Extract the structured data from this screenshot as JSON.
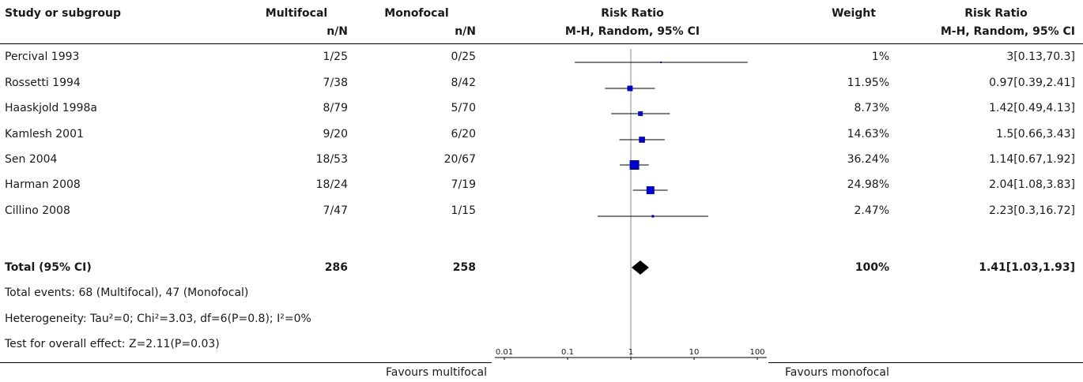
{
  "headers": {
    "study": "Study or subgroup",
    "group1": "Multifocal",
    "group1_sub": "n/N",
    "group2": "Monofocal",
    "group2_sub": "n/N",
    "plot": "Risk Ratio",
    "plot_sub": "M-H, Random, 95% CI",
    "weight": "Weight",
    "effect": "Risk Ratio",
    "effect_sub": "M-H, Random, 95% CI"
  },
  "studies": [
    {
      "name": "Percival 1993",
      "g1": "1/25",
      "g2": "0/25",
      "weight": "1%",
      "ci_text": "3[0.13,70.3]"
    },
    {
      "name": "Rossetti 1994",
      "g1": "7/38",
      "g2": "8/42",
      "weight": "11.95%",
      "ci_text": "0.97[0.39,2.41]"
    },
    {
      "name": "Haaskjold 1998a",
      "g1": "8/79",
      "g2": "5/70",
      "weight": "8.73%",
      "ci_text": "1.42[0.49,4.13]"
    },
    {
      "name": "Kamlesh 2001",
      "g1": "9/20",
      "g2": "6/20",
      "weight": "14.63%",
      "ci_text": "1.5[0.66,3.43]"
    },
    {
      "name": "Sen 2004",
      "g1": "18/53",
      "g2": "20/67",
      "weight": "36.24%",
      "ci_text": "1.14[0.67,1.92]"
    },
    {
      "name": "Harman 2008",
      "g1": "18/24",
      "g2": "7/19",
      "weight": "24.98%",
      "ci_text": "2.04[1.08,3.83]"
    },
    {
      "name": "Cillino 2008",
      "g1": "7/47",
      "g2": "1/15",
      "weight": "2.47%",
      "ci_text": "2.23[0.3,16.72]"
    }
  ],
  "total": {
    "name": "Total (95% CI)",
    "g1": "286",
    "g2": "258",
    "weight": "100%",
    "ci_text": "1.41[1.03,1.93]"
  },
  "footnotes": {
    "events": "Total events: 68 (Multifocal), 47 (Monofocal)",
    "heterogeneity": "Heterogeneity: Tau²=0; Chi²=3.03, df=6(P=0.8); I²=0%",
    "overall": "Test for overall effect: Z=2.11(P=0.03)"
  },
  "axis": {
    "left_label": "Favours multifocal",
    "right_label": "Favours monofocal",
    "ticks": [
      "0.01",
      "0.1",
      "1",
      "10",
      "100"
    ]
  },
  "colors": {
    "square": "#0000cc",
    "diamond": "#000000",
    "line": "#000000"
  },
  "chart_data": {
    "type": "forest",
    "scale": "log",
    "xlim": [
      0.01,
      100
    ],
    "null_value": 1,
    "studies": [
      {
        "name": "Percival 1993",
        "rr": 3,
        "lo": 0.13,
        "hi": 70.3,
        "weight": 1
      },
      {
        "name": "Rossetti 1994",
        "rr": 0.97,
        "lo": 0.39,
        "hi": 2.41,
        "weight": 11.95
      },
      {
        "name": "Haaskjold 1998a",
        "rr": 1.42,
        "lo": 0.49,
        "hi": 4.13,
        "weight": 8.73
      },
      {
        "name": "Kamlesh 2001",
        "rr": 1.5,
        "lo": 0.66,
        "hi": 3.43,
        "weight": 14.63
      },
      {
        "name": "Sen 2004",
        "rr": 1.14,
        "lo": 0.67,
        "hi": 1.92,
        "weight": 36.24
      },
      {
        "name": "Harman 2008",
        "rr": 2.04,
        "lo": 1.08,
        "hi": 3.83,
        "weight": 24.98
      },
      {
        "name": "Cillino 2008",
        "rr": 2.23,
        "lo": 0.3,
        "hi": 16.72,
        "weight": 2.47
      }
    ],
    "pooled": {
      "rr": 1.41,
      "lo": 1.03,
      "hi": 1.93
    }
  }
}
